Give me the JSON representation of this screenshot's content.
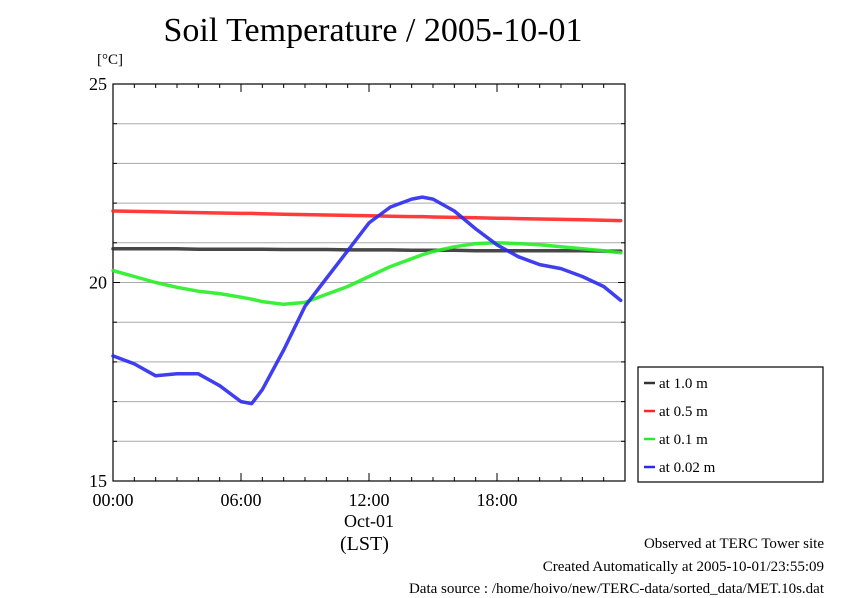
{
  "colors": {
    "at_1_0m": "#333333",
    "at_0_5m": "#ff2626",
    "at_0_1m": "#26ee26",
    "at_0_02m": "#2a2aee",
    "grid": "#aaaaaa"
  },
  "notes": {
    "line1": "Observed at TERC Tower site",
    "line2": "Created Automatically at 2005-10-01/23:55:09",
    "line3": "Data source : /home/hoivo/new/TERC-data/sorted_data/MET.10s.dat"
  },
  "chart_data": {
    "type": "line",
    "title": "Soil Temperature / 2005-10-01",
    "ylabel": "[°C]",
    "xlabel": "(LST)",
    "ylim": [
      15,
      25
    ],
    "xlim": [
      0,
      24
    ],
    "grid": true,
    "legend_position": "right",
    "y_ticks": [
      {
        "value": 15,
        "label": "15"
      },
      {
        "value": 20,
        "label": "20"
      },
      {
        "value": 25,
        "label": "25"
      }
    ],
    "x_ticks": [
      {
        "value": 0,
        "label": "00:00"
      },
      {
        "value": 6,
        "label": "06:00"
      },
      {
        "value": 12,
        "label": "12:00"
      },
      {
        "value": 18,
        "label": "18:00"
      }
    ],
    "x_date_label": "Oct-01",
    "x": [
      0,
      1,
      2,
      3,
      4,
      5,
      6,
      6.5,
      7,
      8,
      9,
      10,
      11,
      12,
      13,
      14,
      14.5,
      15,
      16,
      17,
      18,
      19,
      20,
      21,
      22,
      23,
      23.8
    ],
    "series": [
      {
        "name": "at 1.0 m",
        "color_key": "at_1_0m",
        "values": [
          20.85,
          20.85,
          20.85,
          20.85,
          20.84,
          20.84,
          20.84,
          20.84,
          20.84,
          20.83,
          20.83,
          20.83,
          20.82,
          20.82,
          20.82,
          20.81,
          20.81,
          20.81,
          20.81,
          20.8,
          20.8,
          20.8,
          20.8,
          20.8,
          20.8,
          20.79,
          20.79
        ]
      },
      {
        "name": "at 0.5 m",
        "color_key": "at_0_5m",
        "values": [
          21.8,
          21.79,
          21.78,
          21.77,
          21.76,
          21.75,
          21.74,
          21.74,
          21.73,
          21.72,
          21.71,
          21.7,
          21.69,
          21.68,
          21.67,
          21.66,
          21.66,
          21.65,
          21.64,
          21.63,
          21.62,
          21.61,
          21.6,
          21.59,
          21.58,
          21.57,
          21.56
        ]
      },
      {
        "name": "at 0.1 m",
        "color_key": "at_0_1m",
        "values": [
          20.3,
          20.15,
          20.0,
          19.88,
          19.78,
          19.72,
          19.63,
          19.58,
          19.52,
          19.45,
          19.5,
          19.7,
          19.9,
          20.15,
          20.4,
          20.6,
          20.7,
          20.78,
          20.9,
          20.98,
          21.0,
          20.98,
          20.95,
          20.9,
          20.85,
          20.8,
          20.75
        ]
      },
      {
        "name": "at 0.02 m",
        "color_key": "at_0_02m",
        "values": [
          18.15,
          17.95,
          17.65,
          17.7,
          17.7,
          17.4,
          17.0,
          16.95,
          17.3,
          18.3,
          19.4,
          20.1,
          20.8,
          21.5,
          21.9,
          22.1,
          22.15,
          22.1,
          21.8,
          21.35,
          20.95,
          20.65,
          20.45,
          20.35,
          20.15,
          19.9,
          19.55
        ]
      }
    ]
  }
}
